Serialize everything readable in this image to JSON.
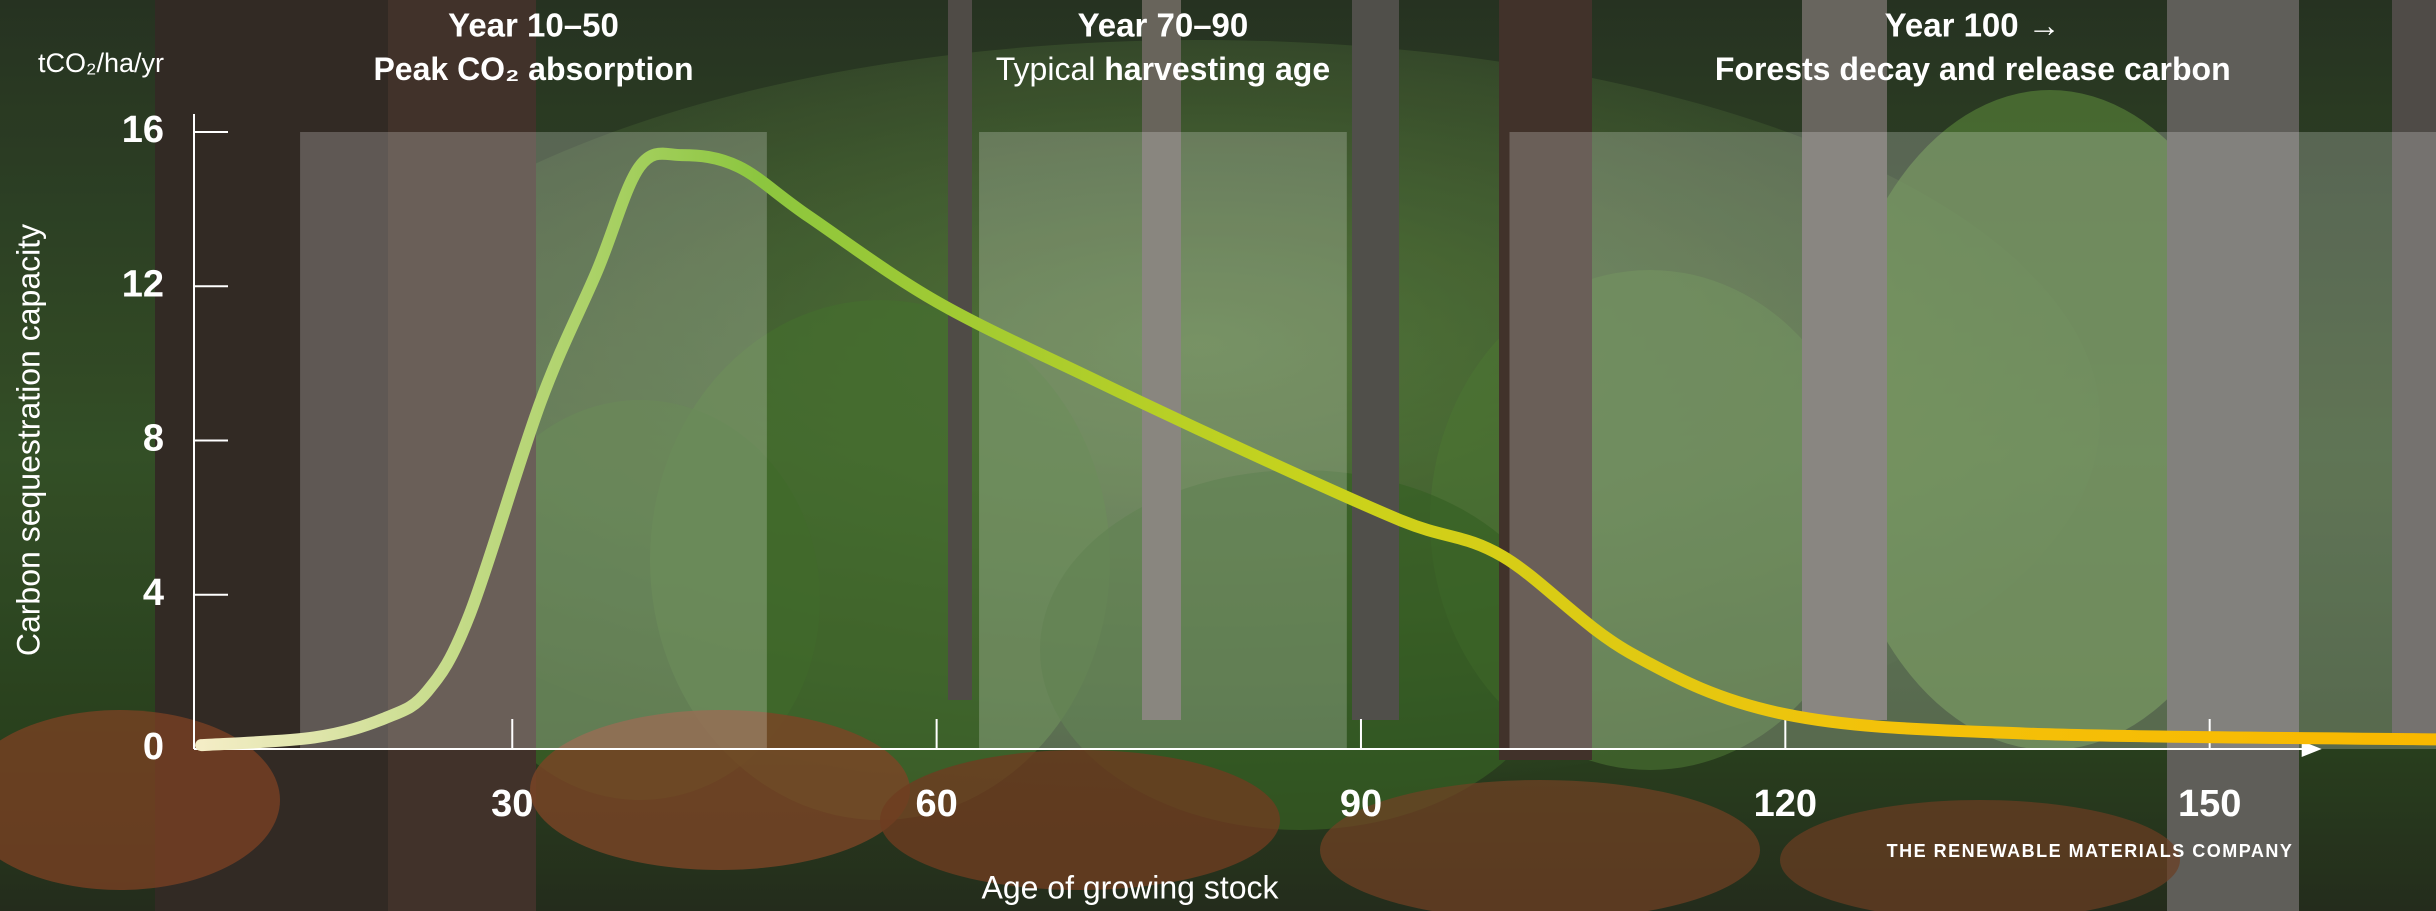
{
  "chart_data": {
    "type": "line",
    "y_unit": "tCO₂/ha/yr",
    "y_label": "Carbon sequestration capacity",
    "x_label": "Age of growing stock",
    "brand": "THE RENEWABLE MATERIALS COMPANY",
    "x": [
      8,
      16,
      21,
      24,
      27,
      32,
      36,
      39,
      42,
      46,
      51,
      60,
      71,
      82,
      93,
      100,
      109,
      120,
      137,
      166
    ],
    "series": [
      {
        "name": "Carbon sequestration capacity",
        "colors": [
          "#f4edc6",
          "#8cc63f",
          "#c8d31c",
          "#f3c20a",
          "#f9b800"
        ],
        "values": [
          0.1,
          0.3,
          0.8,
          1.5,
          3.5,
          9.0,
          12.4,
          15.1,
          15.4,
          15.1,
          13.8,
          11.6,
          9.6,
          7.7,
          5.9,
          5.0,
          2.5,
          0.9,
          0.4,
          0.25
        ]
      }
    ],
    "xlim": [
      7.5,
      166
    ],
    "ylim": [
      0,
      16
    ],
    "xticks": [
      30,
      60,
      90,
      120,
      150
    ],
    "yticks": [
      0,
      4,
      8,
      12,
      16
    ],
    "bands": [
      [
        15,
        48
      ],
      [
        63,
        89
      ],
      [
        100.5,
        166
      ]
    ],
    "band_color": "#ffffff",
    "annotations": [
      {
        "heading": "Year 10–50",
        "line": [
          {
            "text": "Peak CO₂ absorption",
            "bold": true
          }
        ]
      },
      {
        "heading": "Year 70–90",
        "line": [
          {
            "text": "Typical ",
            "bold": false
          },
          {
            "text": "harvesting age",
            "bold": true
          }
        ]
      },
      {
        "heading": "Year 100 →",
        "line": [
          {
            "text": "Forests decay and release carbon",
            "bold": true
          }
        ]
      }
    ]
  }
}
